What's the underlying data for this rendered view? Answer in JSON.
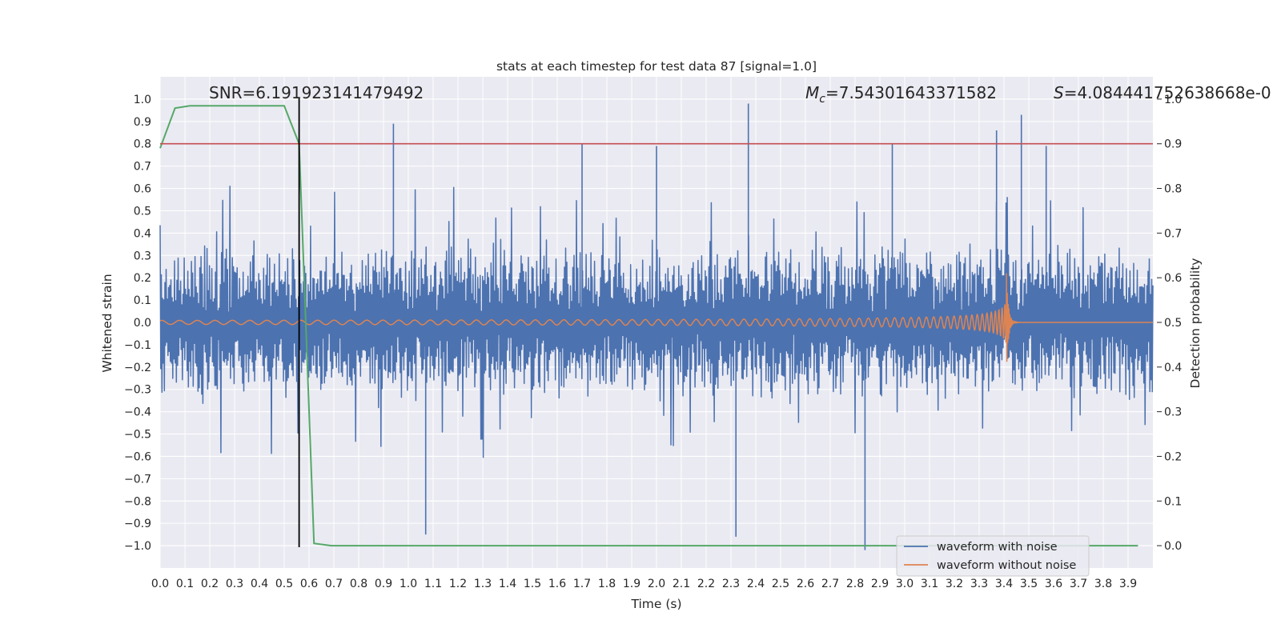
{
  "chart_data": {
    "type": "line",
    "title": "stats at each timestep for test data 87 [signal=1.0]",
    "xlabel": "Time (s)",
    "ylabel": "Whitened strain",
    "y2label": "Detection probability",
    "xlim": [
      0.0,
      4.0
    ],
    "ylim": [
      -1.1,
      1.1
    ],
    "y2lim": [
      -0.05,
      1.05
    ],
    "grid": true,
    "xticks": [
      "0.0",
      "0.1",
      "0.2",
      "0.3",
      "0.4",
      "0.5",
      "0.6",
      "0.7",
      "0.8",
      "0.9",
      "1.0",
      "1.1",
      "1.2",
      "1.3",
      "1.4",
      "1.5",
      "1.6",
      "1.7",
      "1.8",
      "1.9",
      "2.0",
      "2.1",
      "2.2",
      "2.3",
      "2.4",
      "2.5",
      "2.6",
      "2.7",
      "2.8",
      "2.9",
      "3.0",
      "3.1",
      "3.2",
      "3.3",
      "3.4",
      "3.5",
      "3.6",
      "3.7",
      "3.8",
      "3.9"
    ],
    "yticks": [
      "1.0",
      "0.9",
      "0.8",
      "0.7",
      "0.6",
      "0.5",
      "0.4",
      "0.3",
      "0.2",
      "0.1",
      "0.0",
      "−0.1",
      "−0.2",
      "−0.3",
      "−0.4",
      "−0.5",
      "−0.6",
      "−0.7",
      "−0.8",
      "−0.9",
      "−1.0"
    ],
    "y2ticks": [
      "1.0",
      "0.9",
      "0.8",
      "0.7",
      "0.6",
      "0.5",
      "0.4",
      "0.3",
      "0.2",
      "0.1",
      "0.0"
    ],
    "annotations": {
      "snr": "SNR=6.191923141479492",
      "mc_symbol": "M",
      "mc_sub": "c",
      "mc_value": "=7.54301643371582",
      "s_symbol": "S",
      "s_value": "=4.084441752638668e-0"
    },
    "legend": {
      "position": "lower-right",
      "entries": [
        "waveform with noise",
        "waveform without noise"
      ]
    },
    "threshold_line": {
      "axis": "y2",
      "value": 0.9,
      "color": "#c44e52"
    },
    "marker_line": {
      "x": 0.56,
      "color": "#000000"
    },
    "series": [
      {
        "name": "waveform with noise",
        "axis": "y",
        "color": "#4c72b0",
        "style": "dense noise, amplitude ~0.2-0.4 with spikes up to ~0.97",
        "noise_amplitude": 0.3
      },
      {
        "name": "waveform without noise",
        "axis": "y",
        "color": "#dd8452",
        "style": "inspiral chirp peaking near t=3.41 s",
        "merger_time": 3.41,
        "peak_amplitude": 0.22
      },
      {
        "name": "detection probability",
        "axis": "y2",
        "color": "#55a868",
        "x": [
          0.0,
          0.06,
          0.12,
          0.19,
          0.25,
          0.31,
          0.38,
          0.44,
          0.5,
          0.56,
          0.62,
          0.69,
          0.75,
          1.0,
          1.5,
          2.0,
          2.5,
          3.0,
          3.5,
          3.94
        ],
        "values": [
          0.89,
          0.98,
          0.985,
          0.985,
          0.985,
          0.985,
          0.985,
          0.985,
          0.985,
          0.9,
          0.005,
          0.0,
          0.0,
          0.0,
          0.0,
          0.0,
          0.0,
          0.0,
          0.0,
          0.0
        ]
      }
    ],
    "notable_spikes": [
      {
        "x": 0.94,
        "y": 0.89
      },
      {
        "x": 1.7,
        "y": 0.8
      },
      {
        "x": 2.0,
        "y": 0.79
      },
      {
        "x": 2.37,
        "y": 0.98
      },
      {
        "x": 2.95,
        "y": 0.8
      },
      {
        "x": 3.37,
        "y": 0.86
      },
      {
        "x": 3.47,
        "y": 0.93
      },
      {
        "x": 3.57,
        "y": 0.79
      },
      {
        "x": 1.07,
        "y": -0.95
      },
      {
        "x": 2.32,
        "y": -0.96
      },
      {
        "x": 2.84,
        "y": -1.02
      }
    ]
  }
}
